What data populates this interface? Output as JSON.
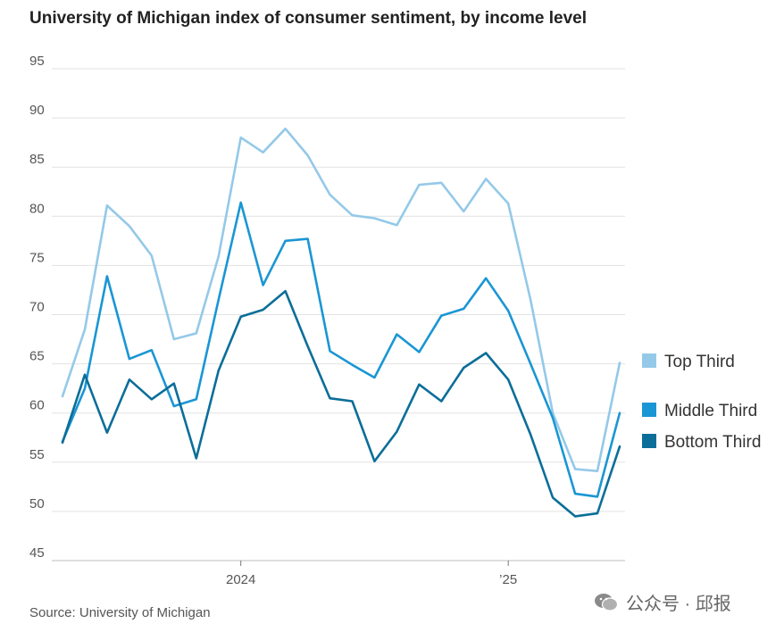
{
  "chart_data": {
    "type": "line",
    "title": "University of Michigan index of consumer sentiment, by income level",
    "ylim": [
      45,
      95
    ],
    "yticks": [
      45,
      50,
      55,
      60,
      65,
      70,
      75,
      80,
      85,
      90,
      95
    ],
    "x_ticks": [
      {
        "index": 8,
        "label": "2024"
      },
      {
        "index": 20,
        "label": "’25"
      }
    ],
    "series": [
      {
        "name": "Top Third",
        "color": "#94c9e8",
        "values": [
          61.7,
          68.5,
          81.1,
          79.0,
          76.0,
          67.5,
          68.1,
          75.9,
          88.0,
          86.5,
          88.9,
          86.2,
          82.2,
          80.1,
          79.8,
          79.1,
          83.2,
          83.4,
          80.5,
          83.8,
          81.3,
          71.5,
          60.0,
          54.3,
          54.1,
          65.1
        ]
      },
      {
        "name": "Middle Third",
        "color": "#1a96d4",
        "values": [
          57.1,
          62.5,
          73.9,
          65.5,
          66.4,
          60.7,
          61.4,
          71.5,
          81.4,
          73.0,
          77.5,
          77.7,
          66.3,
          64.9,
          63.6,
          68.0,
          66.2,
          69.9,
          70.6,
          73.7,
          70.4,
          65.0,
          59.5,
          51.8,
          51.5,
          60.0
        ]
      },
      {
        "name": "Bottom Third",
        "color": "#0b6e99",
        "values": [
          57.0,
          63.9,
          58.0,
          63.4,
          61.4,
          63.0,
          55.4,
          64.3,
          69.8,
          70.5,
          72.4,
          66.8,
          61.5,
          61.2,
          55.1,
          58.1,
          62.9,
          61.2,
          64.6,
          66.1,
          63.4,
          57.8,
          51.4,
          49.5,
          49.8,
          56.6
        ]
      }
    ],
    "legend_position": "right",
    "grid": true
  },
  "source": "Source: University of Michigan",
  "watermark": "公众号 · 邱报"
}
